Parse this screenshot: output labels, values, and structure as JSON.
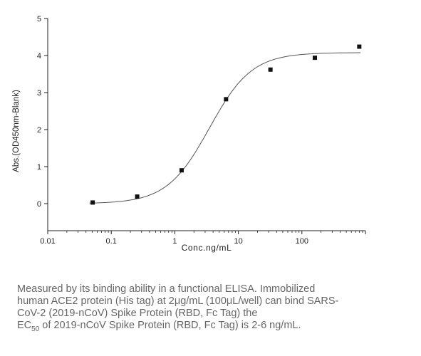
{
  "chart_data": {
    "type": "scatter",
    "xlabel": "Conc.ng/mL",
    "ylabel": "Abs.(OD450nm-Blank)",
    "xscale": "log",
    "xlim": [
      0.01,
      1000
    ],
    "ylim": [
      0,
      5
    ],
    "x_ticks": [
      0.01,
      0.1,
      1,
      10,
      100
    ],
    "x_tick_labels": [
      "0.01",
      "0.1",
      "1",
      "10",
      "100"
    ],
    "y_ticks": [
      0,
      1,
      2,
      3,
      4,
      5
    ],
    "y_tick_labels": [
      "0",
      "1",
      "2",
      "3",
      "4",
      "5"
    ],
    "grid": false,
    "series": [
      {
        "marker": "square",
        "x": [
          0.051,
          0.256,
          1.28,
          6.4,
          32,
          160,
          800
        ],
        "y": [
          0.03,
          0.19,
          0.9,
          2.82,
          3.62,
          3.94,
          4.24
        ]
      }
    ],
    "fit_curve": {
      "type": "4PL",
      "bottom": 0.0,
      "top": 4.08,
      "ec50": 3.5,
      "hill": 1.3
    }
  },
  "caption": {
    "lines": [
      "Measured by its binding ability in a functional ELISA. Immobilized",
      "human ACE2 protein (His tag) at 2μg/mL (100μL/well) can bind SARS-",
      "CoV-2 (2019-nCoV) Spike Protein (RBD, Fc Tag)    the"
    ],
    "last_prefix": "EC",
    "last_sub": "50",
    "last_suffix": " of 2019-nCoV Spike Protein (RBD, Fc Tag) is 2-6 ng/mL."
  },
  "colors": {
    "axis": "#222222",
    "marker": "#111111",
    "curve": "#555555",
    "caption": "#666666"
  }
}
